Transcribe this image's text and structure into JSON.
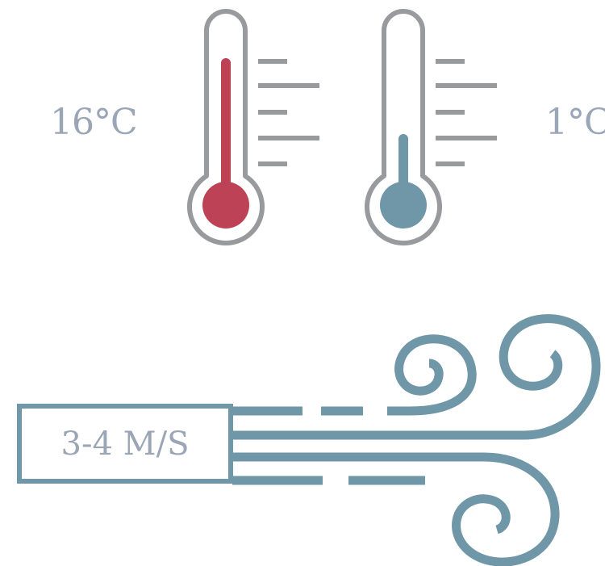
{
  "temperatures": {
    "high": "16°C",
    "low": "1°C"
  },
  "wind": {
    "speed": "3-4 M/S"
  },
  "colors": {
    "warm": "#bd4256",
    "cold": "#6f97a8",
    "outline": "#999a9d",
    "wind": "#6f97a8",
    "text": "#9aa6b6"
  },
  "icons": [
    "thermometer-warm-icon",
    "thermometer-cold-icon",
    "wind-icon"
  ]
}
